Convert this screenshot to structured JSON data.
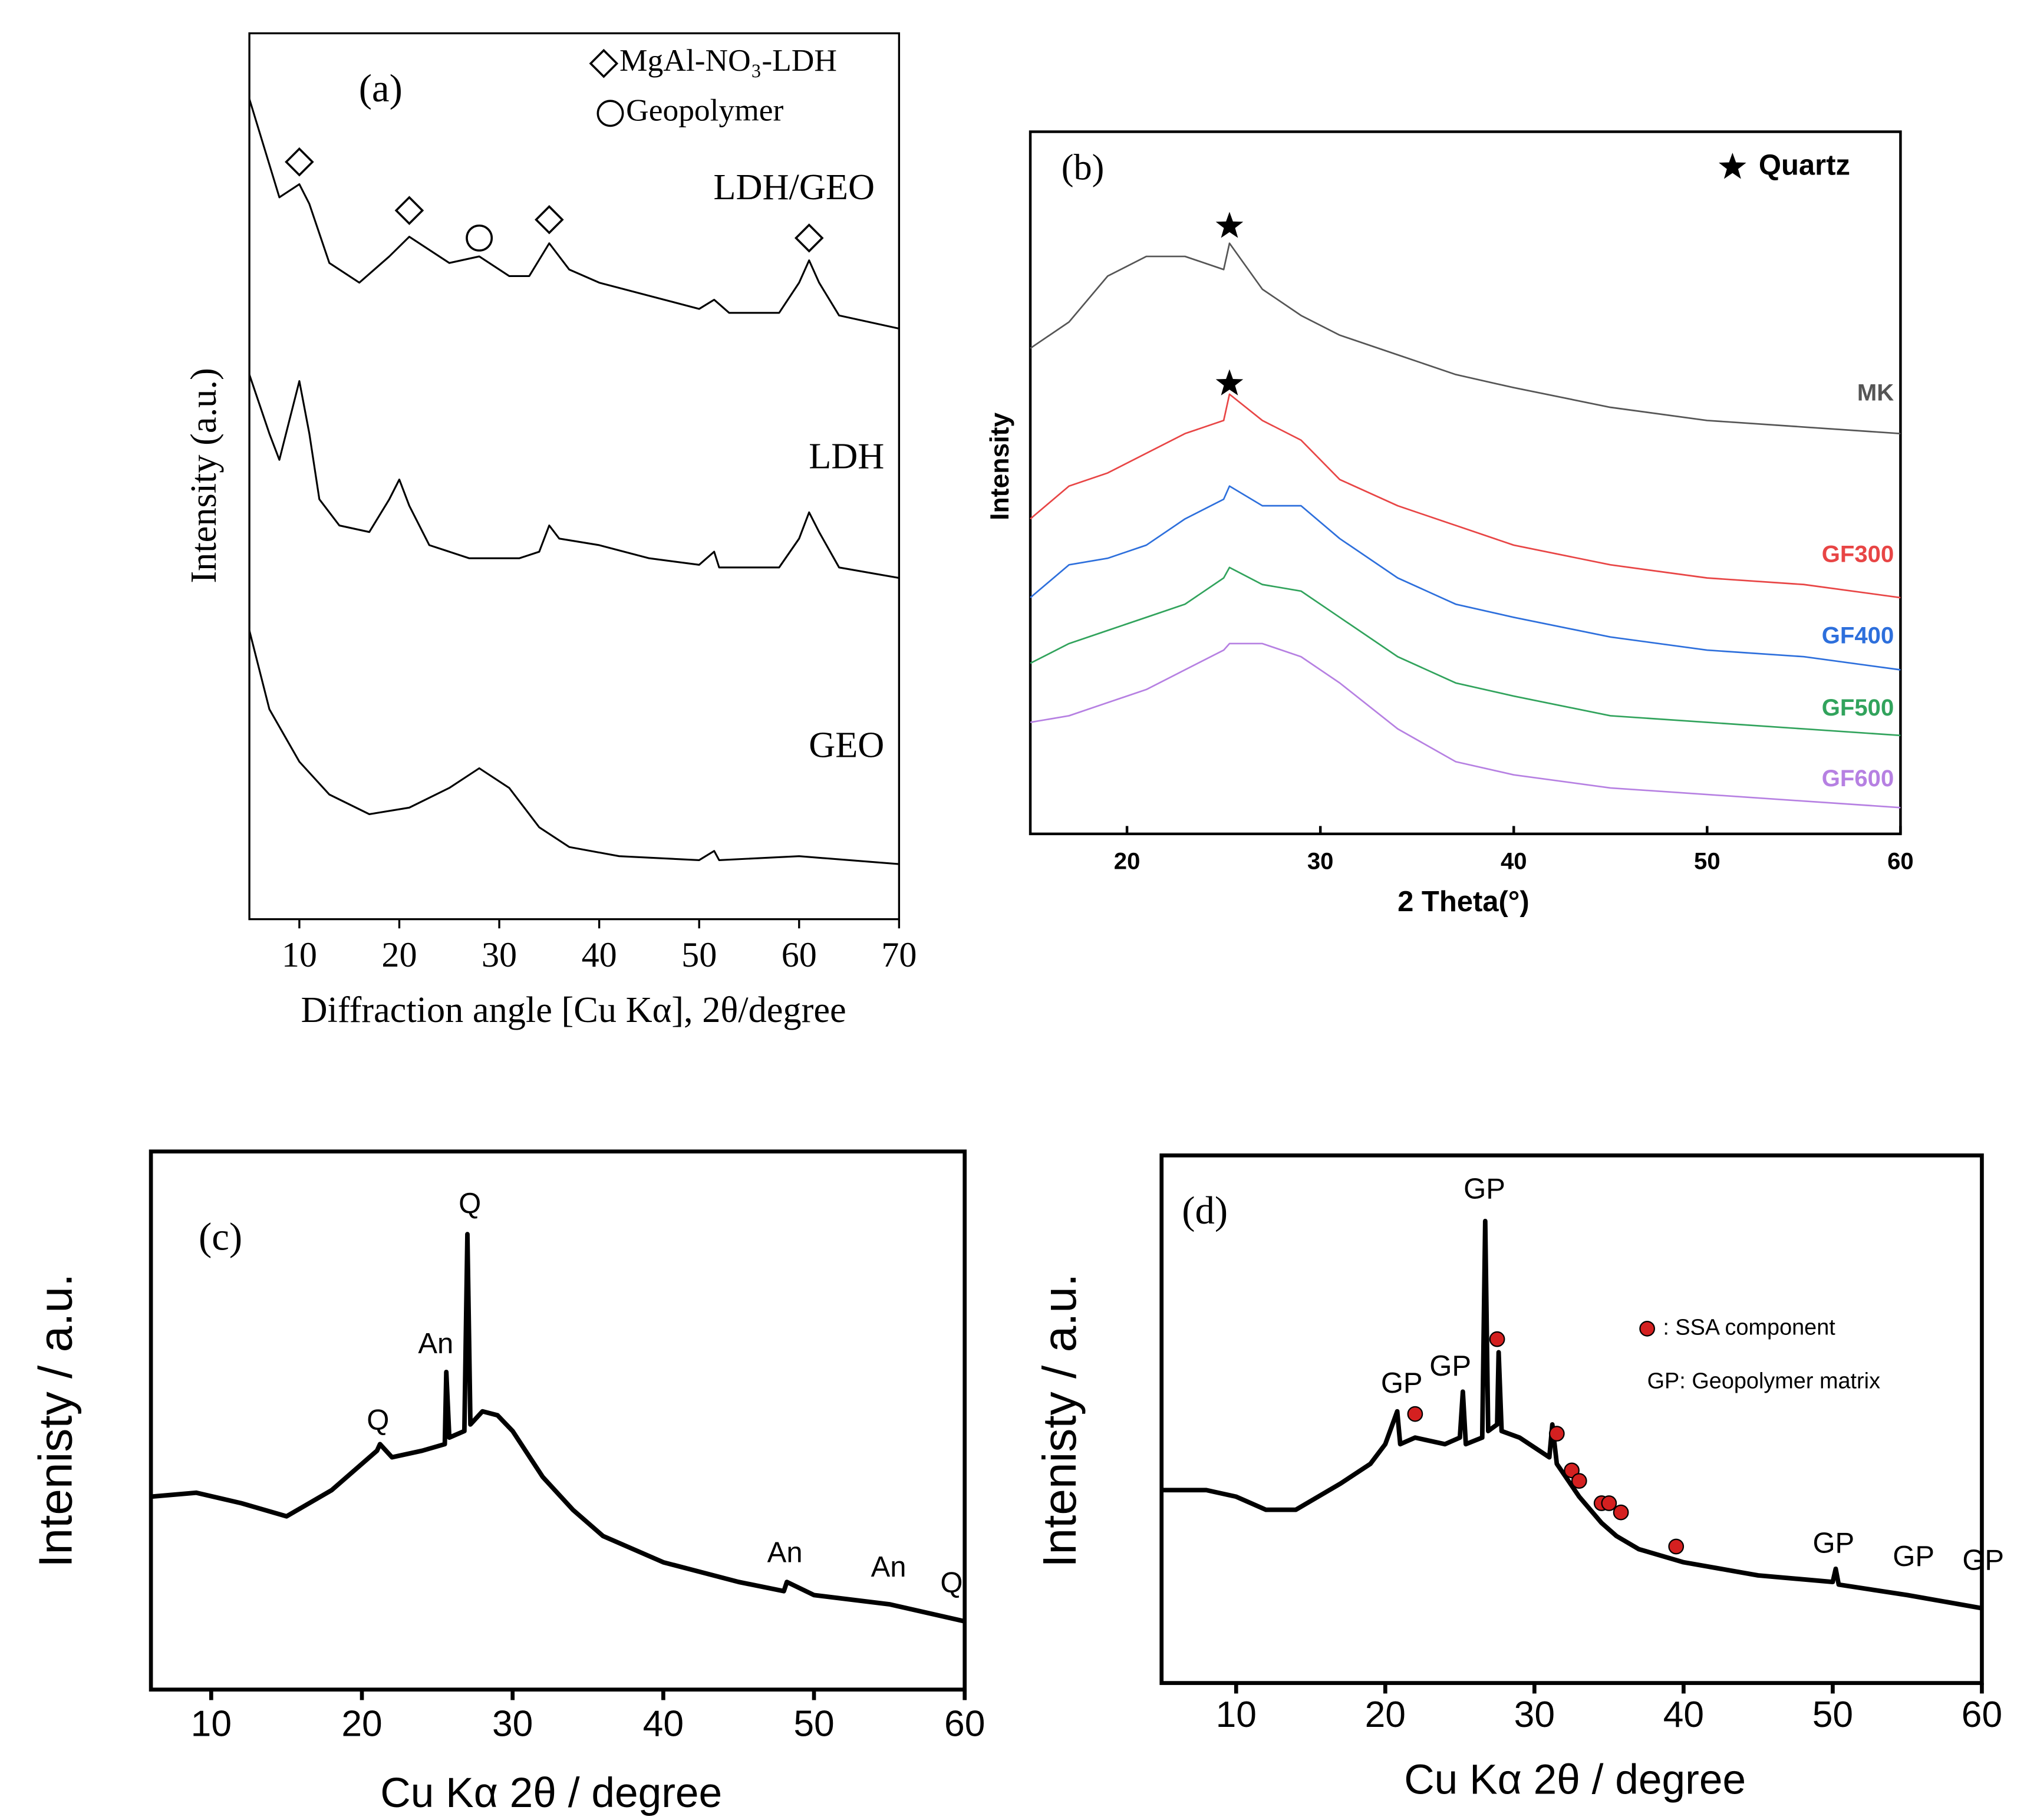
{
  "chart_data": [
    {
      "type": "line",
      "panel_label": "(a)",
      "y_label": "Intensity (a.u.)",
      "x_label": "Diffraction angle [Cu Kα], 2θ/degree",
      "xlim": [
        5,
        70
      ],
      "ylim": [
        0,
        675
      ],
      "xticks": [
        10,
        20,
        30,
        40,
        50,
        60,
        70
      ],
      "series": [
        {
          "name": "LDH/GEO",
          "color": "#000000",
          "x": [
            5,
            8,
            10,
            11,
            13,
            16,
            19,
            21,
            23,
            25,
            28,
            31,
            33,
            35,
            37,
            40,
            45,
            50,
            51.5,
            53,
            58,
            60,
            61,
            62,
            64,
            70
          ],
          "values": [
            625,
            550,
            560,
            545,
            500,
            485,
            505,
            520,
            510,
            500,
            505,
            490,
            490,
            515,
            495,
            485,
            475,
            465,
            472,
            462,
            462,
            485,
            502,
            485,
            460,
            450
          ]
        },
        {
          "name": "LDH",
          "color": "#000000",
          "x": [
            5,
            7,
            8,
            9,
            10,
            11,
            12,
            14,
            17,
            19,
            20,
            21,
            23,
            27,
            32,
            34,
            35,
            36,
            40,
            45,
            50,
            51.5,
            52,
            58,
            60,
            61,
            62,
            64,
            70
          ],
          "values": [
            415,
            370,
            350,
            380,
            410,
            370,
            320,
            300,
            295,
            320,
            335,
            315,
            285,
            275,
            275,
            280,
            300,
            290,
            285,
            275,
            270,
            280,
            268,
            268,
            290,
            310,
            295,
            268,
            260
          ]
        },
        {
          "name": "GEO",
          "color": "#000000",
          "x": [
            5,
            7,
            10,
            13,
            17,
            21,
            25,
            28,
            31,
            34,
            37,
            42,
            50,
            51.5,
            52,
            60,
            70
          ],
          "values": [
            220,
            160,
            120,
            95,
            80,
            85,
            100,
            115,
            100,
            70,
            55,
            48,
            45,
            52,
            45,
            48,
            42
          ]
        }
      ],
      "markers": [
        {
          "name": "MgAl-NO₃-LDH",
          "symbol": "diamond",
          "color": "#000000",
          "x": [
            10,
            21,
            35,
            61
          ],
          "values": [
            577,
            540,
            533,
            519
          ]
        },
        {
          "name": "Geopolymer",
          "symbol": "circle",
          "color": "#000000",
          "x": [
            28
          ],
          "values": [
            519
          ]
        }
      ]
    },
    {
      "type": "line",
      "panel_label": "(b)",
      "y_label": "Intensity",
      "x_label": "2 Theta(°)",
      "xlim": [
        15,
        60
      ],
      "ylim": [
        0,
        535
      ],
      "xticks": [
        20,
        30,
        40,
        50,
        60
      ],
      "x": [
        15,
        17,
        19,
        21,
        23,
        25,
        25.3,
        27,
        29,
        31,
        34,
        37,
        40,
        45,
        50,
        55,
        60
      ],
      "series": [
        {
          "name": "MK",
          "color": "#555555",
          "values": [
            370,
            390,
            425,
            440,
            440,
            430,
            450,
            415,
            395,
            380,
            365,
            350,
            340,
            325,
            315,
            310,
            305
          ]
        },
        {
          "name": "GF300",
          "color": "#e84545",
          "values": [
            240,
            265,
            275,
            290,
            305,
            315,
            335,
            315,
            300,
            270,
            250,
            235,
            220,
            205,
            195,
            190,
            180
          ]
        },
        {
          "name": "GF400",
          "color": "#2d6fdc",
          "values": [
            180,
            205,
            210,
            220,
            240,
            255,
            265,
            250,
            250,
            225,
            195,
            175,
            165,
            150,
            140,
            135,
            125
          ]
        },
        {
          "name": "GF500",
          "color": "#31a35c",
          "values": [
            130,
            145,
            155,
            165,
            175,
            195,
            203,
            190,
            185,
            165,
            135,
            115,
            105,
            90,
            85,
            80,
            75
          ]
        },
        {
          "name": "GF600",
          "color": "#b680e2",
          "values": [
            85,
            90,
            100,
            110,
            125,
            140,
            145,
            145,
            135,
            115,
            80,
            55,
            45,
            35,
            30,
            25,
            20
          ]
        }
      ],
      "markers": [
        {
          "name": "Quartz",
          "symbol": "star",
          "color": "#000000",
          "x": [
            25.3,
            25.3
          ],
          "values": [
            463,
            343
          ]
        }
      ]
    },
    {
      "type": "line",
      "panel_label": "(c)",
      "y_label": "Intenisty / a.u.",
      "x_label": "Cu Kα 2θ / degree",
      "xlim": [
        6,
        60
      ],
      "ylim": [
        0,
        410
      ],
      "xticks": [
        10,
        20,
        30,
        40,
        50,
        60
      ],
      "x": [
        6,
        9,
        12,
        15,
        18,
        20,
        21,
        21.2,
        22,
        24,
        25.5,
        25.6,
        25.8,
        26.8,
        27,
        27.2,
        28,
        29,
        30,
        32,
        34,
        36,
        40,
        45,
        48,
        48.2,
        50,
        55,
        60
      ],
      "series": [
        {
          "color": "#000000",
          "values": [
            147,
            150,
            142,
            132,
            152,
            172,
            182,
            187,
            177,
            182,
            187,
            242,
            192,
            197,
            347,
            202,
            212,
            209,
            197,
            162,
            137,
            117,
            97,
            82,
            75,
            82,
            72,
            65,
            52
          ]
        }
      ],
      "annotations": [
        "Q",
        "An",
        "Q",
        "An",
        "An",
        "Q"
      ]
    },
    {
      "type": "line",
      "panel_label": "(d)",
      "y_label": "Intenisty / a.u.",
      "x_label": "Cu Kα 2θ / degree",
      "xlim": [
        5,
        60
      ],
      "ylim": [
        0,
        402
      ],
      "xticks": [
        10,
        20,
        30,
        40,
        50,
        60
      ],
      "x": [
        5,
        8,
        10,
        12,
        14,
        17,
        19,
        20,
        20.8,
        21,
        22,
        24,
        25,
        25.2,
        25.4,
        26.5,
        26.7,
        26.9,
        27.5,
        27.6,
        27.8,
        29,
        31,
        31.2,
        31.5,
        33,
        34.5,
        35.5,
        37,
        40,
        45,
        50,
        50.2,
        50.4,
        55,
        60
      ],
      "series": [
        {
          "color": "#000000",
          "values": [
            147,
            147,
            142,
            132,
            132,
            152,
            167,
            182,
            207,
            182,
            187,
            182,
            187,
            222,
            182,
            187,
            352,
            192,
            197,
            252,
            192,
            187,
            172,
            197,
            167,
            142,
            122,
            112,
            102,
            92,
            82,
            77,
            87,
            75,
            67,
            57
          ]
        }
      ],
      "markers": [
        {
          "name": ": SSA component",
          "symbol": "dot",
          "color": "#d42020",
          "x": [
            22,
            27.5,
            31.5,
            32.5,
            33,
            34.5,
            35,
            35.8,
            39.5
          ],
          "values": [
            205,
            262,
            190,
            162,
            154,
            137,
            137,
            130,
            104
          ]
        }
      ],
      "annotations": [
        "GP",
        "GP",
        "GP",
        "GP",
        "GP",
        "GP",
        "GP: Geopolymer matrix"
      ]
    }
  ]
}
